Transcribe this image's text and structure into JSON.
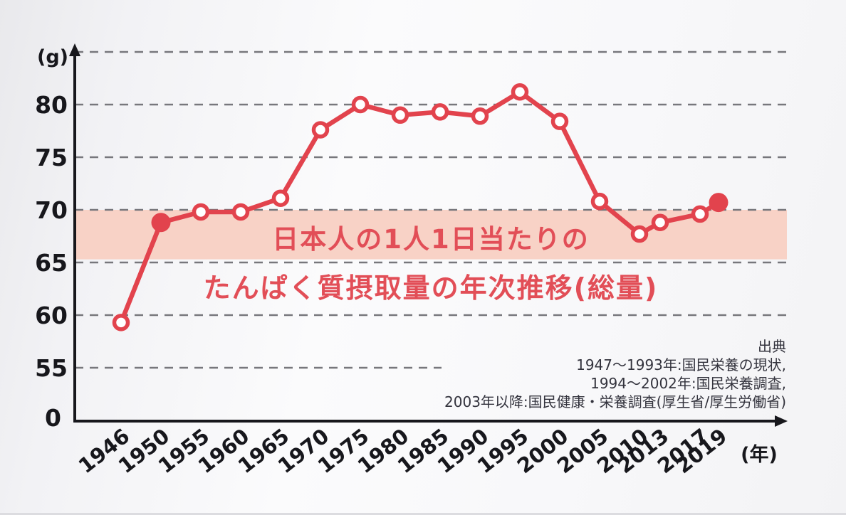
{
  "chart_data": {
    "type": "line",
    "title_line1": "日本人の1人1日当たりの",
    "title_line2": "たんぱく質摂取量の年次推移(総量)",
    "y_axis_unit": "(g)",
    "x_axis_unit": "(年)",
    "origin_label": "0",
    "categories": [
      "1946",
      "1950",
      "1955",
      "1960",
      "1965",
      "1970",
      "1975",
      "1980",
      "1985",
      "1990",
      "1995",
      "2000",
      "2005",
      "2010",
      "2013",
      "2017",
      "2019"
    ],
    "values": [
      59.3,
      68.8,
      69.8,
      69.8,
      71.1,
      77.6,
      80.0,
      79.0,
      79.3,
      78.9,
      81.2,
      78.4,
      70.8,
      67.7,
      68.8,
      69.6,
      70.7
    ],
    "emphasized_categories": [
      "1950",
      "2019"
    ],
    "y_ticks": [
      55,
      60,
      65,
      70,
      75,
      80
    ],
    "gridlines": [
      55,
      60,
      65,
      70,
      75,
      80,
      85
    ],
    "ylim": [
      55,
      85
    ],
    "grid": "dashed",
    "legend": "none",
    "highlight_band": {
      "from": 65.3,
      "to": 70.0
    },
    "colors": {
      "line": "#e2434d",
      "marker_fill": "#ffffff",
      "band": "#f8d2c6",
      "grid": "#77777c",
      "axis": "#17171c",
      "title": "#e24e57",
      "source_text": "#33333d"
    },
    "source": {
      "lines": [
        "出典",
        "1947〜1993年:国民栄養の現状,",
        "1994〜2002年:国民栄養調査,",
        "2003年以降:国民健康・栄養調査(厚生省/厚生労働省)"
      ]
    }
  }
}
